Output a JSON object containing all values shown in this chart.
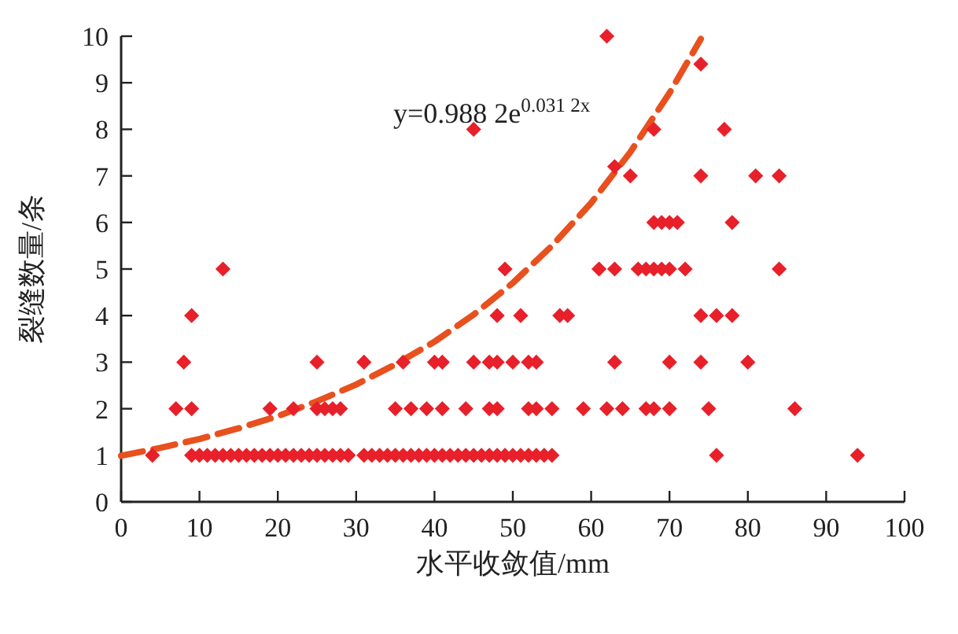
{
  "chart_data": {
    "type": "scatter",
    "xlabel": "水平收敛值/mm",
    "ylabel": "裂缝数量/条",
    "annotations": [
      "y=0.988 2e$^{0.031 2x}$"
    ],
    "xlim": [
      0,
      100
    ],
    "ylim": [
      0,
      10
    ],
    "xticks": [
      0,
      10,
      20,
      30,
      40,
      50,
      60,
      70,
      80,
      90,
      100
    ],
    "yticks": [
      0,
      1,
      2,
      3,
      4,
      5,
      6,
      7,
      8,
      9,
      10
    ],
    "marker": "diamond",
    "grid": false,
    "series": [
      {
        "color": "#e8202a",
        "x": [
          4,
          9,
          10,
          11,
          12,
          13,
          14,
          15,
          16,
          17,
          18,
          19,
          20,
          21,
          22,
          23,
          24,
          25,
          26,
          27,
          28,
          29,
          31,
          32,
          33,
          34,
          35,
          36,
          37,
          38,
          39,
          40,
          41,
          42,
          43,
          44,
          45,
          46,
          47,
          48,
          49,
          50,
          51,
          52,
          53,
          54,
          55,
          76,
          94
        ],
        "values": [
          1,
          1,
          1,
          1,
          1,
          1,
          1,
          1,
          1,
          1,
          1,
          1,
          1,
          1,
          1,
          1,
          1,
          1,
          1,
          1,
          1,
          1,
          1,
          1,
          1,
          1,
          1,
          1,
          1,
          1,
          1,
          1,
          1,
          1,
          1,
          1,
          1,
          1,
          1,
          1,
          1,
          1,
          1,
          1,
          1,
          1,
          1,
          1,
          1
        ]
      },
      {
        "color": "#e8202a",
        "x": [
          7,
          9,
          19,
          22,
          25,
          26,
          27,
          28,
          35,
          37,
          39,
          41,
          44,
          47,
          48,
          52,
          53,
          55,
          59,
          62,
          64,
          67,
          68,
          70,
          75,
          86
        ],
        "values": [
          2,
          2,
          2,
          2,
          2,
          2,
          2,
          2,
          2,
          2,
          2,
          2,
          2,
          2,
          2,
          2,
          2,
          2,
          2,
          2,
          2,
          2,
          2,
          2,
          2,
          2
        ]
      },
      {
        "color": "#e8202a",
        "x": [
          8,
          25,
          31,
          36,
          40,
          41,
          45,
          47,
          48,
          50,
          52,
          53,
          63,
          70,
          74,
          80
        ],
        "values": [
          3,
          3,
          3,
          3,
          3,
          3,
          3,
          3,
          3,
          3,
          3,
          3,
          3,
          3,
          3,
          3
        ]
      },
      {
        "color": "#e8202a",
        "x": [
          9,
          48,
          51,
          56,
          57,
          74,
          76,
          78,
          13,
          49,
          61,
          63,
          66,
          67,
          68,
          69,
          70,
          72,
          84
        ],
        "values": [
          4,
          4,
          4,
          4,
          4,
          4,
          4,
          4,
          5,
          5,
          5,
          5,
          5,
          5,
          5,
          5,
          5,
          5,
          5
        ]
      },
      {
        "color": "#e8202a",
        "x": [
          68,
          69,
          70,
          71,
          78,
          65,
          74,
          81,
          84,
          63,
          45,
          68,
          77,
          74,
          62
        ],
        "values": [
          6,
          6,
          6,
          6,
          6,
          7,
          7,
          7,
          7,
          7.2,
          8,
          8,
          8,
          9.4,
          10
        ]
      },
      {
        "type": "line",
        "marker": "none",
        "line_style": "dashed",
        "color": "#e8501e",
        "x": [
          0,
          5,
          10,
          15,
          20,
          25,
          30,
          35,
          40,
          45,
          50,
          55,
          60,
          65,
          70,
          74
        ],
        "values": [
          0.99,
          1.16,
          1.35,
          1.58,
          1.84,
          2.16,
          2.52,
          2.95,
          3.44,
          4.02,
          4.7,
          5.5,
          6.42,
          7.51,
          8.78,
          9.94
        ]
      }
    ]
  }
}
